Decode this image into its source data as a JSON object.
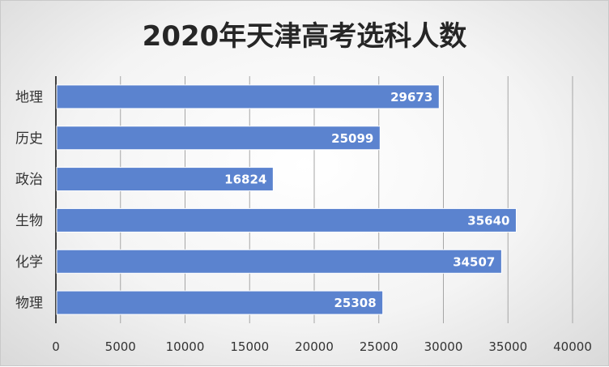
{
  "chart_data": {
    "type": "bar",
    "orientation": "horizontal",
    "title": "2020年天津高考选科人数",
    "categories": [
      "地理",
      "历史",
      "政治",
      "生物",
      "化学",
      "物理"
    ],
    "values": [
      29673,
      25099,
      16824,
      35640,
      34507,
      25308
    ],
    "xlim": [
      0,
      40000
    ],
    "xticks": [
      0,
      5000,
      10000,
      15000,
      20000,
      25000,
      30000,
      35000,
      40000
    ],
    "grid": true,
    "legend": "none",
    "bar_color": "#5b83cf",
    "label_color": "#ffffff"
  }
}
